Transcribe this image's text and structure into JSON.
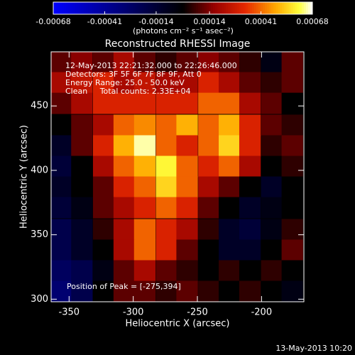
{
  "chart_data": {
    "type": "heatmap",
    "title": "Reconstructed RHESSI Image",
    "annotations": [
      "12-May-2013 22:21:32.000 to 22:26:46.000",
      "Detectors: 3F 5F 6F 7F 8F 9F, Att 0",
      "Energy Range: 25.0 - 50.0 keV",
      "Clean     Total counts: 2.33E+04"
    ],
    "peak_label": "Position of Peak = [-275,394]",
    "xlabel": "Heliocentric X (arcsec)",
    "ylabel": "Heliocentric Y (arcsec)",
    "colorbar_label": "(photons cm⁻² s⁻¹ asec⁻²)",
    "footer": "13-May-2013 10:20",
    "xlim": [
      -364,
      -167
    ],
    "xticks": [
      -350,
      -300,
      -250,
      -200
    ],
    "ylim": [
      298,
      492
    ],
    "yticks": [
      300,
      350,
      400,
      450
    ],
    "zlim": [
      -0.00068,
      0.00068
    ],
    "zticks": [
      -0.00068,
      -0.00041,
      -0.00014,
      0.00014,
      0.00041,
      0.00068
    ],
    "x": [
      -356,
      -340,
      -323,
      -307,
      -291,
      -274,
      -258,
      -241,
      -225,
      -209,
      -192,
      -176
    ],
    "y": [
      484,
      468,
      452,
      435,
      419,
      403,
      387,
      371,
      354,
      338,
      322,
      306
    ],
    "z": [
      [
        0.0001,
        0.00015,
        0.0001,
        0.0002,
        0.0001,
        5e-05,
        0.0001,
        0.00015,
        0.0001,
        5e-05,
        -5e-05,
        0.0001
      ],
      [
        0.0002,
        0.00025,
        0.0003,
        0.0002,
        0.00025,
        0.0002,
        0.0002,
        0.0003,
        0.0002,
        0.0001,
        5e-05,
        0.0001
      ],
      [
        0.0001,
        0.0002,
        0.0003,
        0.0003,
        0.0003,
        0.0003,
        0.0003,
        0.0004,
        0.0004,
        0.0002,
        0.0001,
        0
      ],
      [
        0,
        0.0001,
        0.0002,
        0.0004,
        0.00045,
        0.0004,
        0.0005,
        0.0004,
        0.0005,
        0.0003,
        0.0001,
        5e-05
      ],
      [
        -0.0001,
        0.0001,
        0.0003,
        0.0005,
        0.00065,
        0.0004,
        0.0003,
        0.0004,
        0.00055,
        0.0003,
        5e-05,
        0.0001
      ],
      [
        -0.00015,
        0,
        0.0002,
        0.0004,
        0.0005,
        0.0006,
        0.0004,
        0.0003,
        0.0004,
        0.0002,
        0,
        5e-05
      ],
      [
        -0.0001,
        0,
        0.0001,
        0.0003,
        0.0004,
        0.00055,
        0.0004,
        0.0002,
        0.0001,
        0,
        -0.0001,
        0
      ],
      [
        -0.00015,
        -5e-05,
        0.0001,
        0.0002,
        0.0003,
        0.0004,
        0.0003,
        0.0001,
        0,
        -0.0001,
        -5e-05,
        0
      ],
      [
        -0.0002,
        -0.0001,
        5e-05,
        0.0002,
        0.0004,
        0.0003,
        0.0002,
        5e-05,
        -0.0001,
        -0.00015,
        -5e-05,
        5e-05
      ],
      [
        -0.0002,
        -0.0001,
        0,
        0.0002,
        0.0004,
        0.0003,
        0.0001,
        0,
        -0.0001,
        -0.0001,
        0,
        0.0001
      ],
      [
        -0.00025,
        -0.0002,
        -5e-05,
        0.0001,
        0.0002,
        0.0001,
        5e-05,
        0,
        5e-05,
        0,
        5e-05,
        0
      ],
      [
        -0.0003,
        -0.0002,
        0,
        0.0001,
        0.0001,
        5e-05,
        0.0001,
        5e-05,
        0,
        5e-05,
        0,
        -5e-05
      ]
    ]
  }
}
